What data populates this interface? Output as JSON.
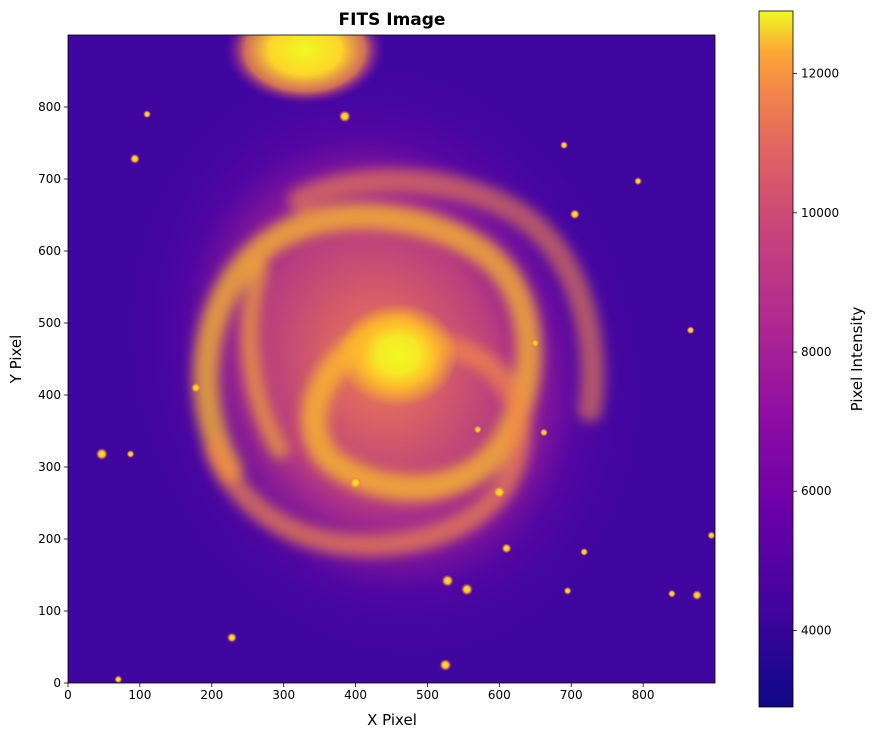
{
  "figure": {
    "title": "FITS Image",
    "xlabel": "X Pixel",
    "ylabel": "Y Pixel",
    "colorbar_label": "Pixel Intensity",
    "colormap": "plasma",
    "colormap_stops": [
      "#0d0887",
      "#5302a3",
      "#8b0aa5",
      "#b83289",
      "#db5c68",
      "#f48849",
      "#febd2a",
      "#f0f921"
    ]
  },
  "chart_data": {
    "type": "heatmap",
    "title": "FITS Image",
    "xlabel": "X Pixel",
    "ylabel": "Y Pixel",
    "xlim": [
      0,
      900
    ],
    "ylim": [
      0,
      900
    ],
    "xticks": [
      0,
      100,
      200,
      300,
      400,
      500,
      600,
      700,
      800
    ],
    "yticks": [
      0,
      100,
      200,
      300,
      400,
      500,
      600,
      700,
      800
    ],
    "colorbar": {
      "label": "Pixel Intensity",
      "range": [
        2900,
        12900
      ],
      "ticks": [
        4000,
        6000,
        8000,
        10000,
        12000
      ]
    },
    "features": {
      "background_level": 3900,
      "galaxy_core": {
        "x": 450,
        "y": 450,
        "peak": 12900
      },
      "companion_galaxy": {
        "x": 330,
        "y": 880,
        "peak": 12900
      },
      "stars": [
        {
          "x": 47,
          "y": 318
        },
        {
          "x": 87,
          "y": 318
        },
        {
          "x": 110,
          "y": 790
        },
        {
          "x": 93,
          "y": 728
        },
        {
          "x": 385,
          "y": 787
        },
        {
          "x": 793,
          "y": 697
        },
        {
          "x": 705,
          "y": 651
        },
        {
          "x": 866,
          "y": 490
        },
        {
          "x": 400,
          "y": 278
        },
        {
          "x": 610,
          "y": 187
        },
        {
          "x": 718,
          "y": 182
        },
        {
          "x": 695,
          "y": 128
        },
        {
          "x": 525,
          "y": 25
        },
        {
          "x": 70,
          "y": 5
        },
        {
          "x": 895,
          "y": 205
        },
        {
          "x": 228,
          "y": 63
        },
        {
          "x": 528,
          "y": 142
        },
        {
          "x": 840,
          "y": 124
        },
        {
          "x": 875,
          "y": 122
        },
        {
          "x": 570,
          "y": 352
        },
        {
          "x": 600,
          "y": 265
        },
        {
          "x": 178,
          "y": 410
        },
        {
          "x": 650,
          "y": 472
        },
        {
          "x": 662,
          "y": 348
        },
        {
          "x": 555,
          "y": 130
        },
        {
          "x": 690,
          "y": 747
        }
      ]
    }
  }
}
